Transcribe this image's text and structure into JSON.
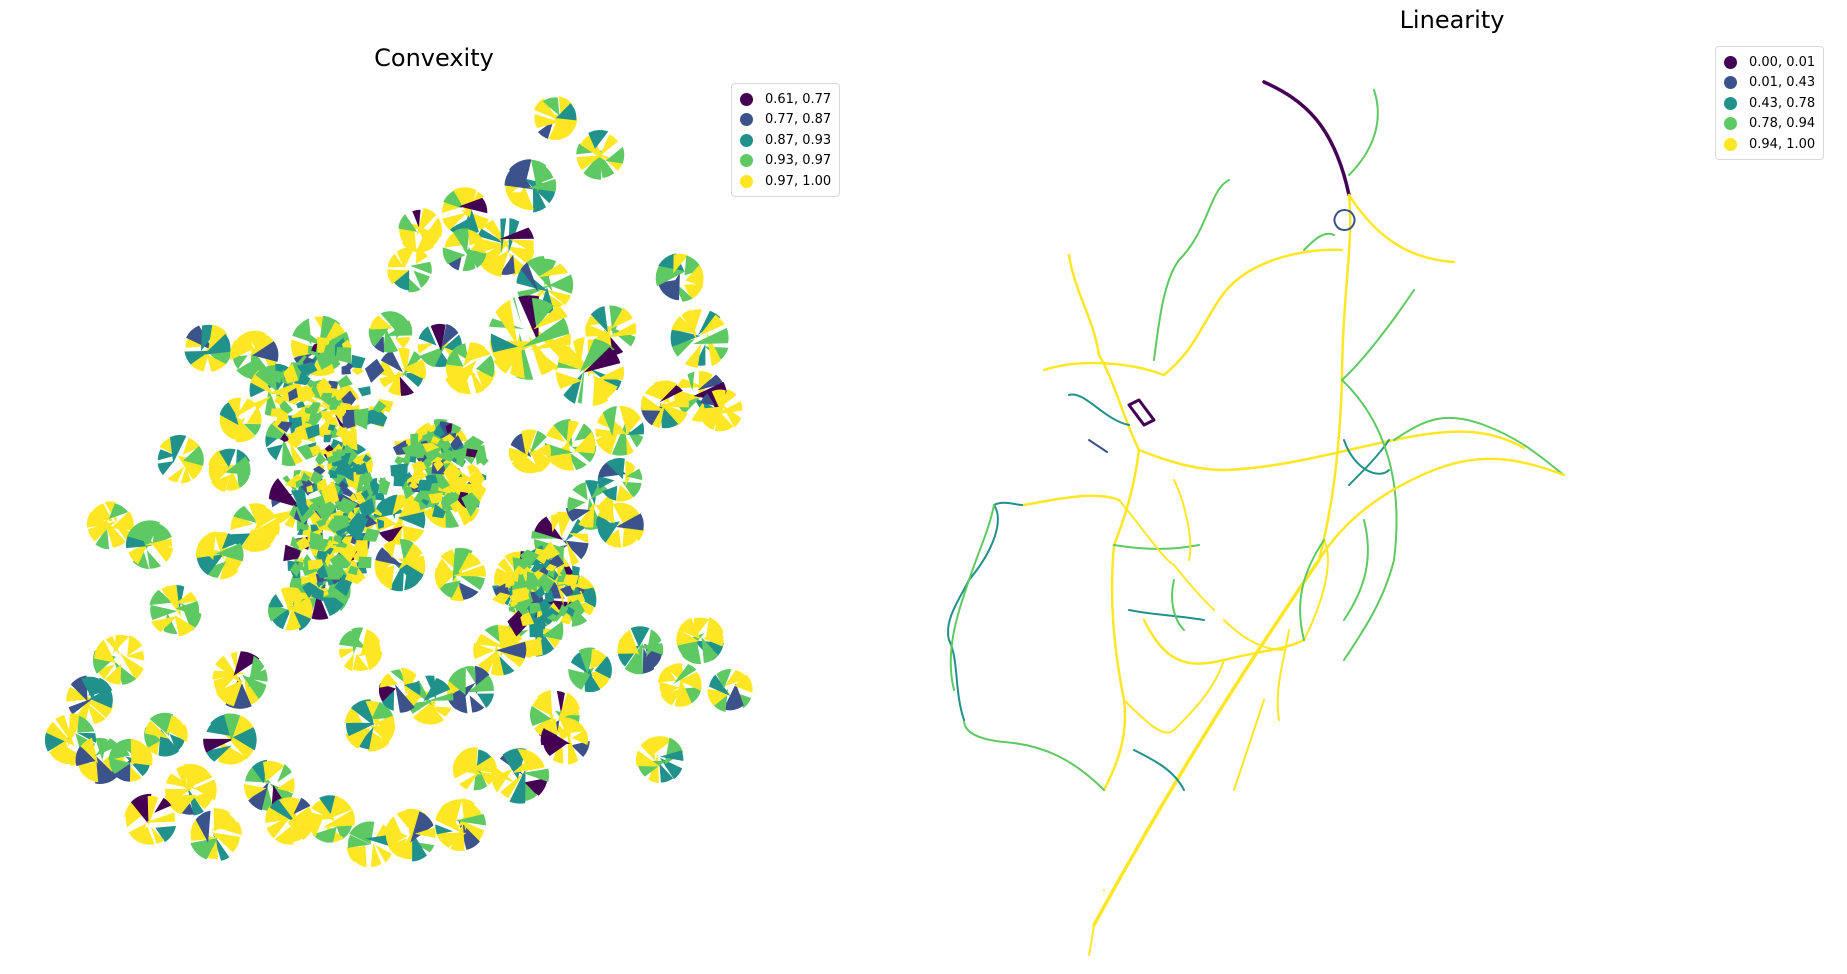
{
  "palette": [
    "#440154",
    "#3b528b",
    "#21918c",
    "#5ec962",
    "#fde725"
  ],
  "panels": [
    {
      "title": "Convexity",
      "legend": [
        "0.61, 0.77",
        "0.77, 0.87",
        "0.87, 0.93",
        "0.93, 0.97",
        "0.97, 1.00"
      ]
    },
    {
      "title": "Linearity",
      "legend": [
        "0.00, 0.01",
        "0.01, 0.43",
        "0.43, 0.78",
        "0.78, 0.94",
        "0.94, 1.00"
      ]
    }
  ]
}
